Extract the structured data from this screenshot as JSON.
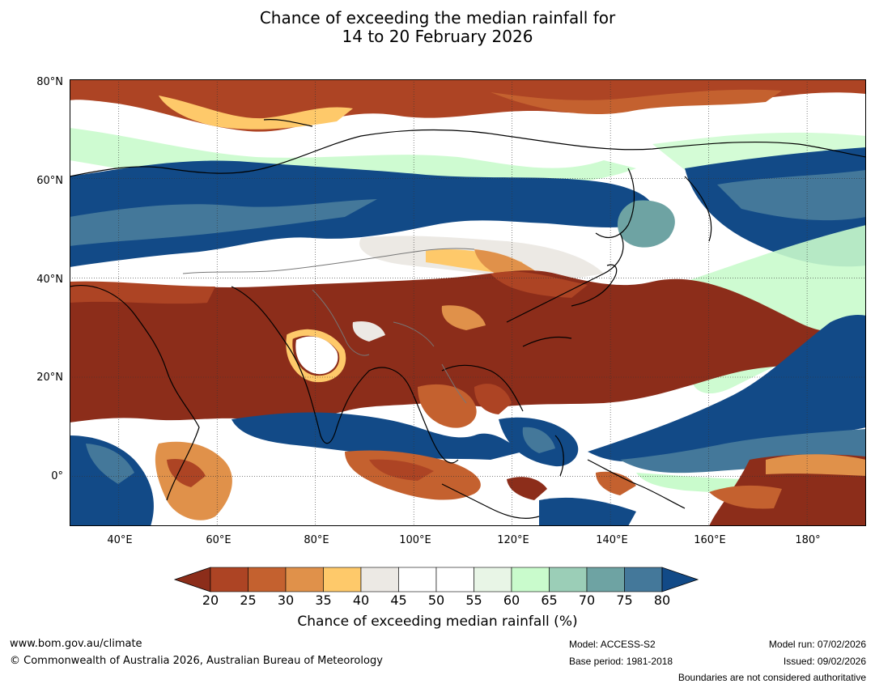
{
  "title": [
    "Chance of exceeding the median rainfall for",
    "14 to 20 February 2026"
  ],
  "map": {
    "lat_labels": [
      "80°N",
      "60°N",
      "40°N",
      "20°N",
      "0°"
    ],
    "lon_labels": [
      "40°E",
      "60°E",
      "80°E",
      "100°E",
      "120°E",
      "140°E",
      "160°E",
      "180°"
    ],
    "lat_range": [
      -10,
      80
    ],
    "lon_range": [
      30,
      192
    ]
  },
  "colorbar": {
    "label": "Chance of exceeding median rainfall (%)",
    "ticks": [
      "20",
      "25",
      "30",
      "35",
      "40",
      "45",
      "50",
      "55",
      "60",
      "65",
      "70",
      "75",
      "80"
    ],
    "below_color": "#8c2d1a",
    "above_color": "#124a87",
    "colors": [
      "#ad4424",
      "#c4612f",
      "#e0914a",
      "#fec96a",
      "#ece9e4",
      "#ffffff",
      "#ffffff",
      "#e8f5e6",
      "#c9fbcc",
      "#9bceb7",
      "#6ea3a3",
      "#44789a"
    ]
  },
  "footer": {
    "website": "www.bom.gov.au/climate",
    "copyright": "© Commonwealth of Australia 2026, Australian Bureau of Meteorology",
    "model": "Model: ACCESS-S2",
    "base_period": "Base period: 1981-2018",
    "model_run": "Model run: 07/02/2026",
    "issued": "Issued: 09/02/2026",
    "disclaimer": "Boundaries are not considered authoritative"
  }
}
